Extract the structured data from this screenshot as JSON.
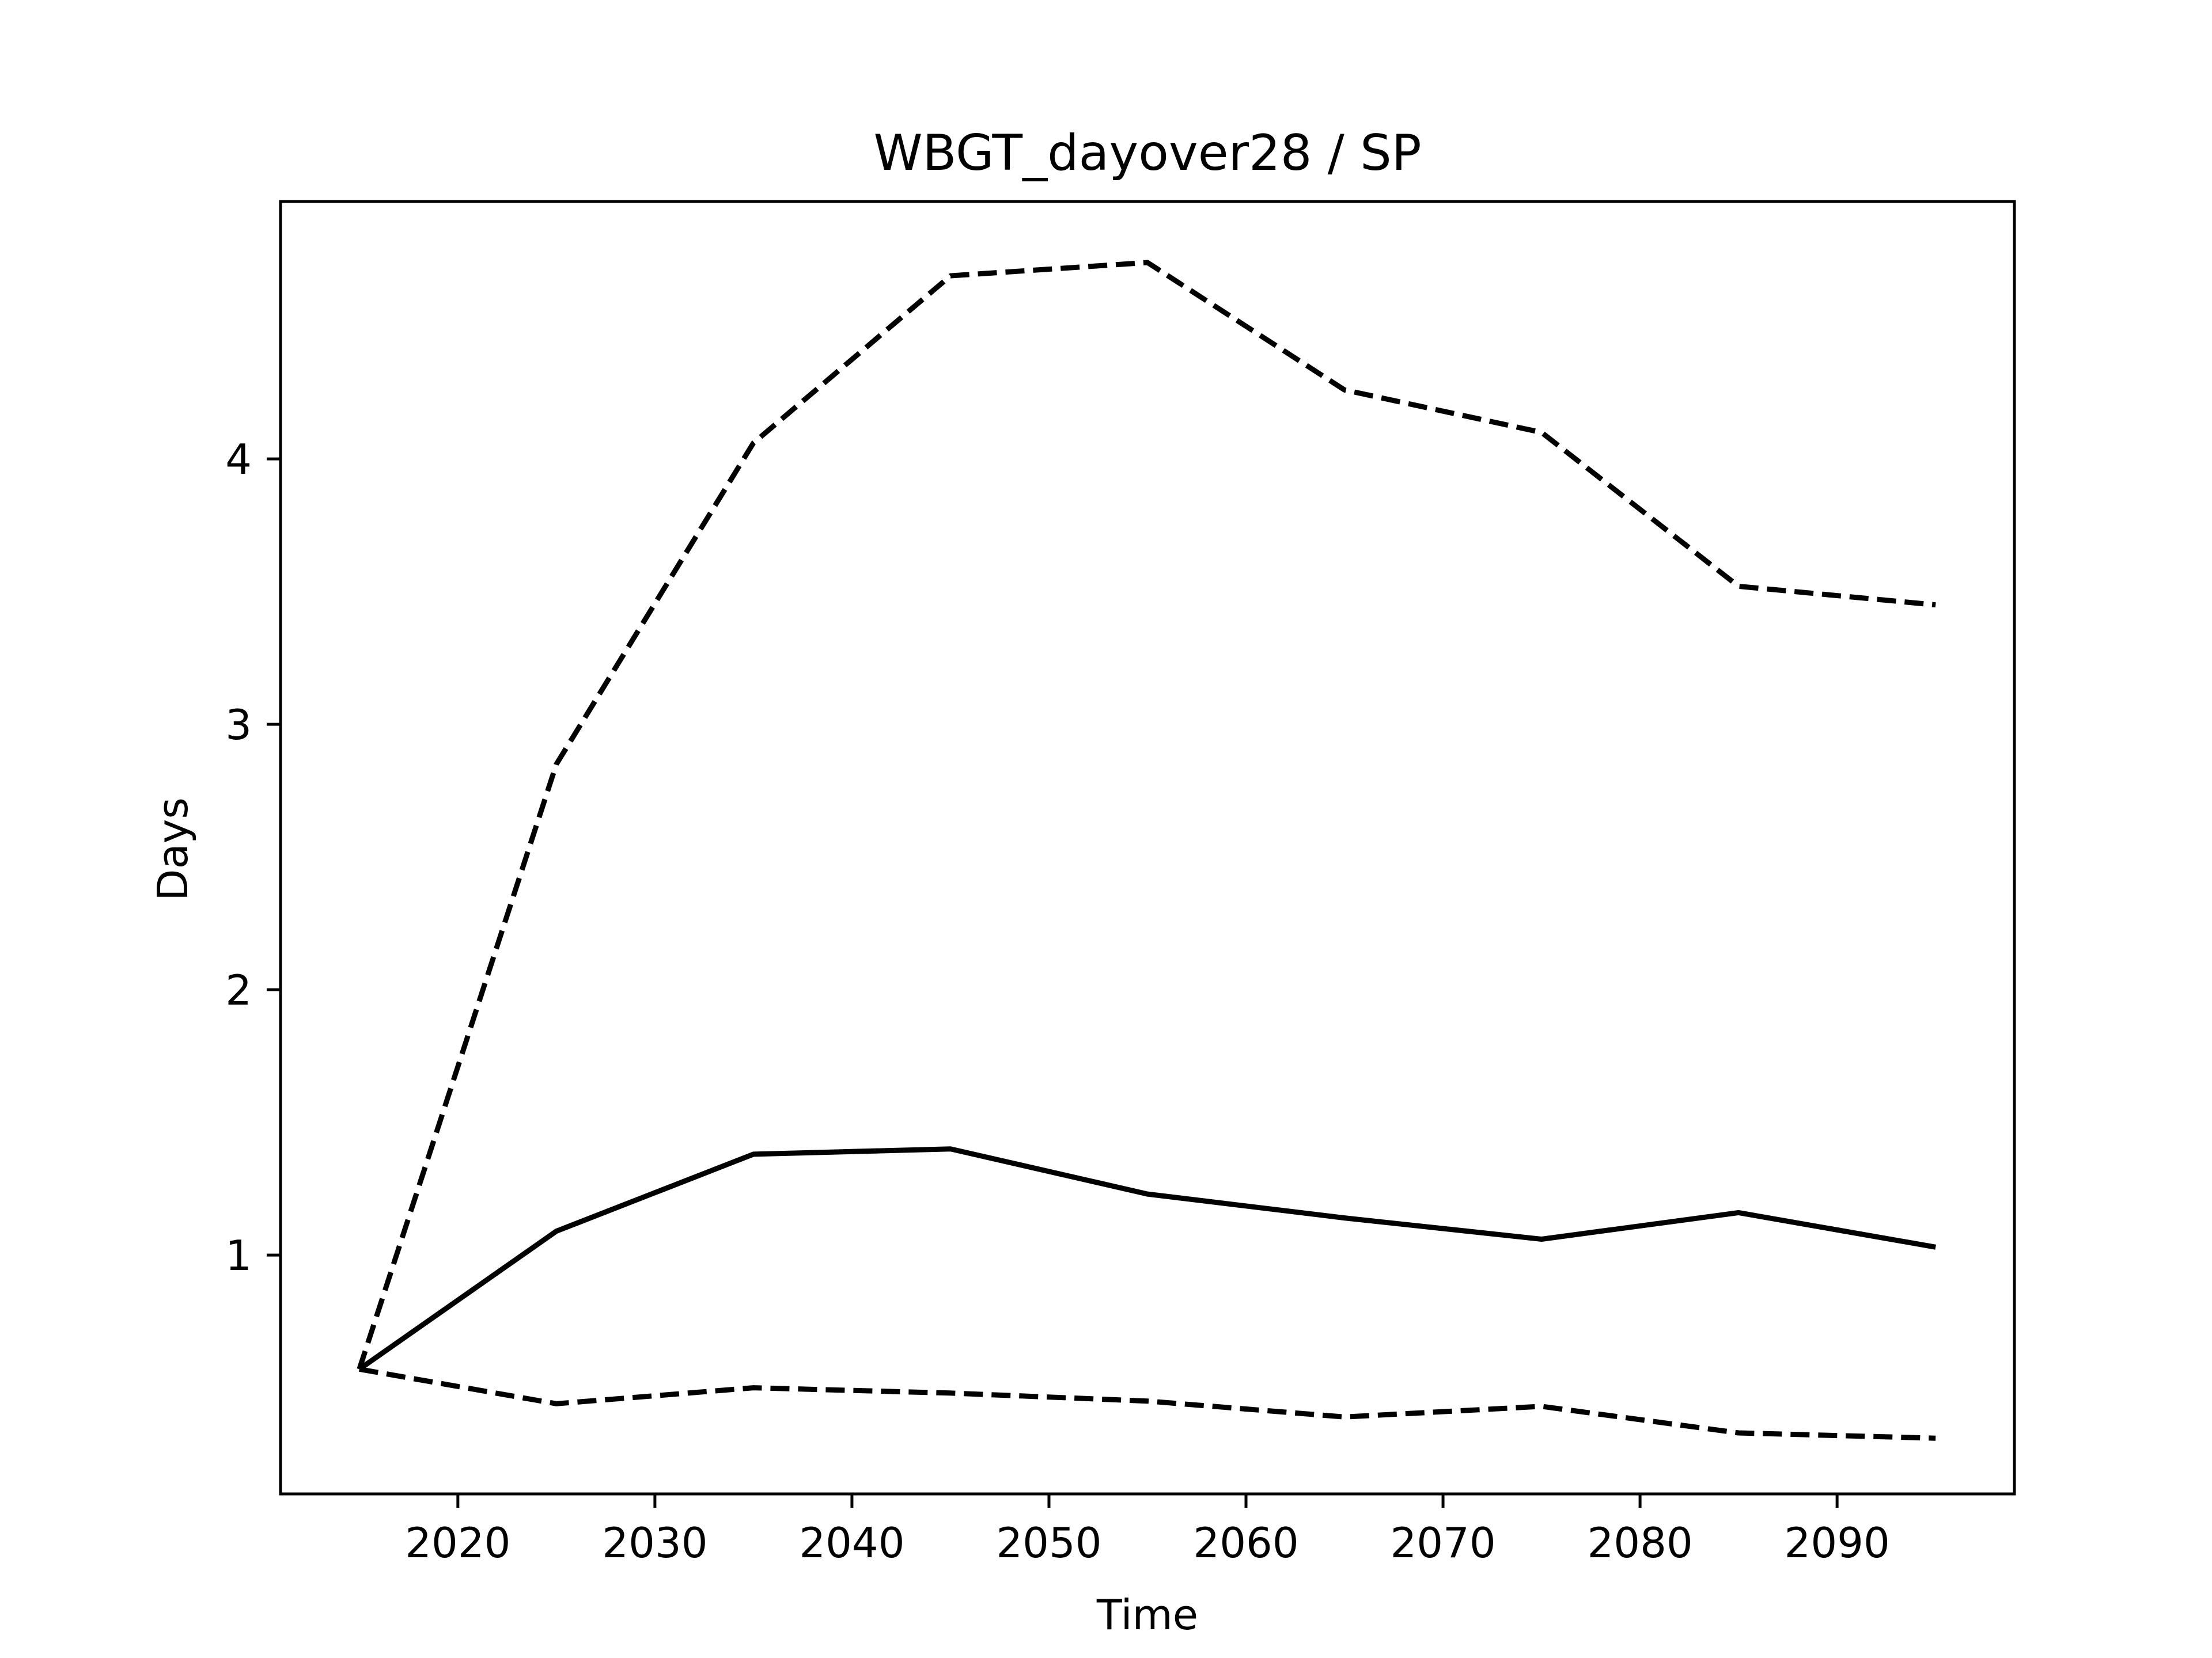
{
  "chart_data": {
    "type": "line",
    "title": "WBGT_dayover28 / SP",
    "xlabel": "Time",
    "ylabel": "Days",
    "xlim": [
      2011,
      2099
    ],
    "ylim": [
      0.1,
      4.97
    ],
    "xticks": [
      2020,
      2030,
      2040,
      2050,
      2060,
      2070,
      2080,
      2090
    ],
    "yticks": [
      1,
      2,
      3,
      4
    ],
    "grid": false,
    "legend": "none",
    "x": [
      2015,
      2025,
      2035,
      2045,
      2055,
      2065,
      2075,
      2085,
      2095
    ],
    "series": [
      {
        "style": "solid",
        "color": "#000000",
        "values": [
          0.57,
          1.09,
          1.38,
          1.4,
          1.23,
          1.14,
          1.06,
          1.16,
          1.03
        ]
      },
      {
        "style": "dashed",
        "color": "#000000",
        "values": [
          0.57,
          2.85,
          4.06,
          4.69,
          4.74,
          4.26,
          4.1,
          3.52,
          3.45
        ]
      },
      {
        "style": "dashed",
        "color": "#000000",
        "values": [
          0.57,
          0.44,
          0.5,
          0.48,
          0.45,
          0.39,
          0.43,
          0.33,
          0.31
        ]
      }
    ]
  }
}
